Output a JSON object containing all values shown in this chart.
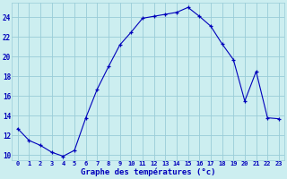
{
  "hours": [
    0,
    1,
    2,
    3,
    4,
    5,
    6,
    7,
    8,
    9,
    10,
    11,
    12,
    13,
    14,
    15,
    16,
    17,
    18,
    19,
    20,
    21,
    22,
    23
  ],
  "temps": [
    12.7,
    11.5,
    11.0,
    10.3,
    9.9,
    10.5,
    13.8,
    16.7,
    19.0,
    21.2,
    22.5,
    23.9,
    24.1,
    24.3,
    24.5,
    25.0,
    24.1,
    23.1,
    21.3,
    19.7,
    15.5,
    18.5,
    13.8,
    13.7
  ],
  "line_color": "#0000bb",
  "marker": "+",
  "bg_color": "#cceef0",
  "grid_color": "#99ccd8",
  "xlabel": "Graphe des températures (°c)",
  "xlabel_color": "#0000bb",
  "tick_color": "#0000bb",
  "ylim": [
    9.5,
    25.5
  ],
  "yticks": [
    10,
    12,
    14,
    16,
    18,
    20,
    22,
    24
  ],
  "figsize": [
    3.2,
    2.0
  ],
  "dpi": 100
}
